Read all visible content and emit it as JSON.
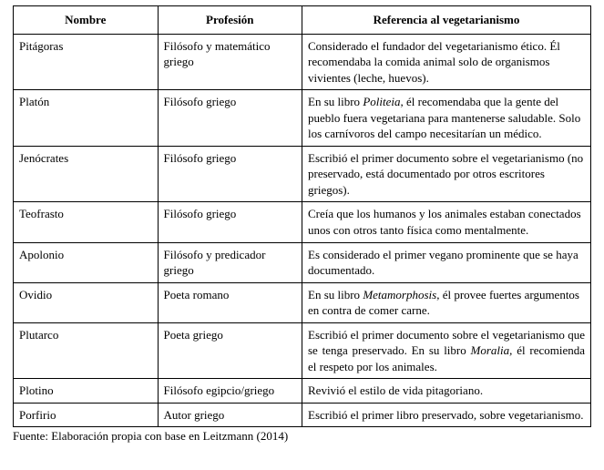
{
  "columns": [
    "Nombre",
    "Profesión",
    "Referencia al vegetarianismo"
  ],
  "rows": [
    {
      "name": "Pitágoras",
      "profession": "Filósofo y matemático griego",
      "reference_parts": [
        {
          "text": "Considerado el fundador del vegetarianismo ético. Él recomendaba la comida animal solo de organismos vivientes (leche, huevos).",
          "italic": false
        }
      ],
      "justify": false
    },
    {
      "name": "Platón",
      "profession": "Filósofo griego",
      "reference_parts": [
        {
          "text": "En su libro ",
          "italic": false
        },
        {
          "text": "Politeia,",
          "italic": true
        },
        {
          "text": " él recomendaba que la gente del pueblo fuera vegetariana para mantenerse saludable. Solo los carnívoros del campo necesitarían un médico.",
          "italic": false
        }
      ],
      "justify": false
    },
    {
      "name": "Jenócrates",
      "profession": "Filósofo griego",
      "reference_parts": [
        {
          "text": "Escribió el primer documento sobre el vegetarianismo (no preservado, está documentado por otros escritores griegos).",
          "italic": false
        }
      ],
      "justify": false
    },
    {
      "name": "Teofrasto",
      "profession": "Filósofo griego",
      "reference_parts": [
        {
          "text": "Creía que los humanos y los animales estaban conectados unos con otros tanto física como mentalmente.",
          "italic": false
        }
      ],
      "justify": false
    },
    {
      "name": "Apolonio",
      "profession": "Filósofo y predicador griego",
      "reference_parts": [
        {
          "text": "Es considerado el primer vegano prominente que se haya documentado.",
          "italic": false
        }
      ],
      "justify": false
    },
    {
      "name": "Ovidio",
      "profession": "Poeta romano",
      "reference_parts": [
        {
          "text": "En su libro ",
          "italic": false
        },
        {
          "text": "Metamorphosis,",
          "italic": true
        },
        {
          "text": " él provee fuertes argumentos en contra de comer carne.",
          "italic": false
        }
      ],
      "justify": false
    },
    {
      "name": "Plutarco",
      "profession": "Poeta griego",
      "reference_parts": [
        {
          "text": "Escribió el primer documento sobre el vegetarianismo que se tenga preservado. En su libro ",
          "italic": false
        },
        {
          "text": "Moralia,",
          "italic": true
        },
        {
          "text": " él recomienda el respeto por los animales.",
          "italic": false
        }
      ],
      "justify": true
    },
    {
      "name": "Plotino",
      "profession": "Filósofo egipcio/griego",
      "reference_parts": [
        {
          "text": "Revivió el estilo de vida pitagoriano.",
          "italic": false
        }
      ],
      "justify": false
    },
    {
      "name": "Porfirio",
      "profession": "Autor griego",
      "reference_parts": [
        {
          "text": "Escribió el primer libro preservado, sobre vegetarianismo.",
          "italic": false
        }
      ],
      "justify": false
    }
  ],
  "source": "Fuente: Elaboración propia con base en Leitzmann (2014)"
}
